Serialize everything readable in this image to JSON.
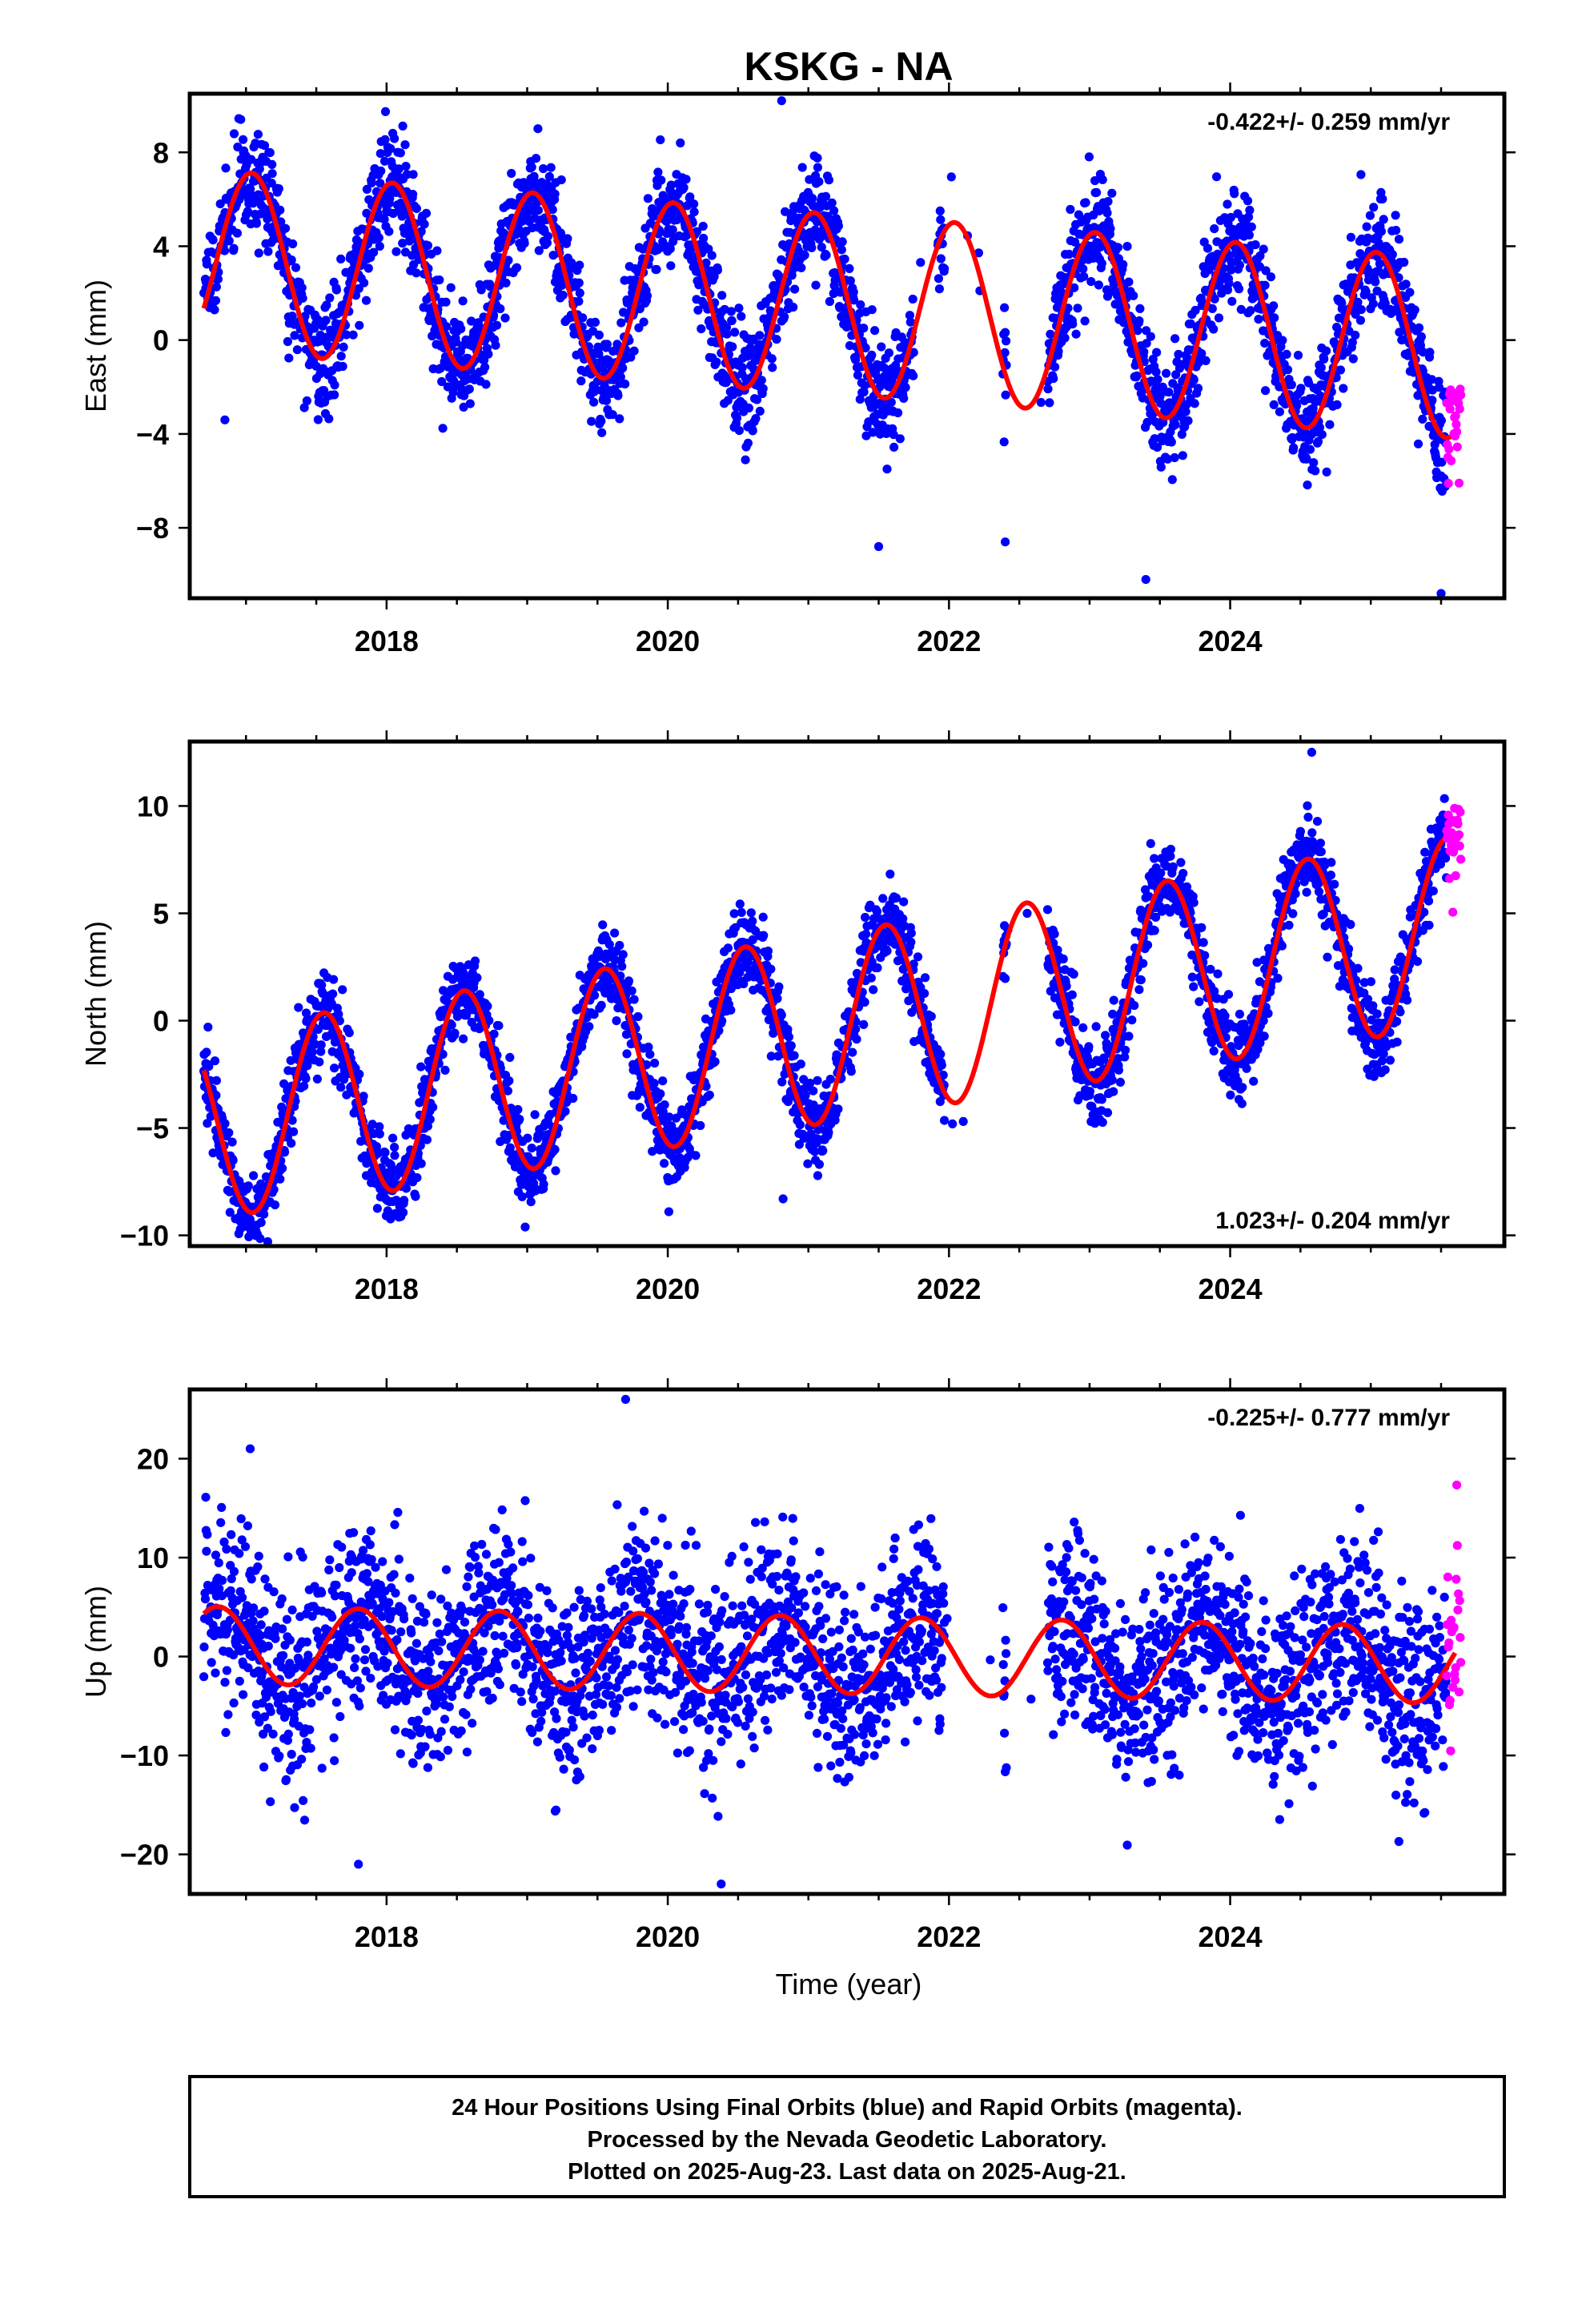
{
  "figure": {
    "title": "KSKG - NA",
    "xlabel": "Time (year)",
    "caption_lines": [
      "24 Hour Positions Using Final Orbits (blue) and Rapid Orbits (magenta).",
      "Processed by the Nevada Geodetic Laboratory.",
      "Plotted on 2025-Aug-23. Last data on 2025-Aug-21."
    ]
  },
  "colors": {
    "final_orbits": "#0000ff",
    "rapid_orbits": "#ff00ff",
    "model_fit": "#ff0000",
    "frame": "#000000"
  },
  "chart_data": [
    {
      "type": "scatter",
      "component": "east",
      "ylabel": "East (mm)",
      "rate_label": "-0.422+/- 0.259 mm/yr",
      "rate_position": "top-right",
      "xlim": [
        2016.6,
        2025.95
      ],
      "ylim": [
        -11,
        10.5
      ],
      "x_ticks": [
        2018,
        2020,
        2022,
        2024
      ],
      "y_ticks": [
        -8,
        -4,
        0,
        4,
        8
      ],
      "fit": {
        "trend_mm_per_yr": -0.422,
        "offset_mm": 1.6,
        "annual_amplitude_mm": 3.85,
        "annual_peak_fraction": 0.04
      },
      "series": [
        {
          "name": "Final Orbits",
          "color": "#0000ff",
          "x_start": 2016.7,
          "x_end": 2025.54,
          "gaps": [
            [
              2021.75,
              2021.92
            ],
            [
              2021.97,
              2022.38
            ],
            [
              2022.41,
              2022.7
            ]
          ]
        },
        {
          "name": "Rapid Orbits",
          "color": "#ff00ff",
          "x_start": 2025.54,
          "x_end": 2025.64
        }
      ],
      "outliers": [
        [
          2020.81,
          10.2
        ],
        [
          2016.85,
          -3.4
        ],
        [
          2021.5,
          -8.8
        ],
        [
          2022.4,
          -8.6
        ],
        [
          2023.4,
          -10.2
        ],
        [
          2025.5,
          -10.8
        ]
      ]
    },
    {
      "type": "scatter",
      "component": "north",
      "ylabel": "North (mm)",
      "rate_label": "1.023+/- 0.204 mm/yr",
      "rate_position": "bottom-right",
      "xlim": [
        2016.6,
        2025.95
      ],
      "ylim": [
        -10.5,
        13
      ],
      "x_ticks": [
        2018,
        2020,
        2022,
        2024
      ],
      "y_ticks": [
        -10,
        -5,
        0,
        5,
        10
      ],
      "fit": {
        "trend_mm_per_yr": 1.023,
        "offset_mm": -0.5,
        "annual_amplitude_mm": 4.4,
        "annual_peak_fraction": 0.55
      },
      "series": [
        {
          "name": "Final Orbits",
          "color": "#0000ff",
          "x_start": 2016.7,
          "x_end": 2025.54,
          "gaps": [
            [
              2021.97,
              2022.38
            ],
            [
              2022.41,
              2022.7
            ]
          ]
        },
        {
          "name": "Rapid Orbits",
          "color": "#ff00ff",
          "x_start": 2025.54,
          "x_end": 2025.64
        }
      ],
      "outliers": [
        [
          2020.82,
          -8.3
        ],
        [
          2024.58,
          12.5
        ],
        [
          2016.73,
          -0.3
        ]
      ]
    },
    {
      "type": "scatter",
      "component": "up",
      "ylabel": "Up (mm)",
      "rate_label": "-0.225+/- 0.777 mm/yr",
      "rate_position": "top-right",
      "xlim": [
        2016.6,
        2025.95
      ],
      "ylim": [
        -24,
        27
      ],
      "x_ticks": [
        2018,
        2020,
        2022,
        2024
      ],
      "y_ticks": [
        -20,
        -10,
        0,
        10,
        20
      ],
      "fit": {
        "trend_mm_per_yr": -0.225,
        "offset_mm": 0.2,
        "annual_amplitude_mm": 3.9,
        "annual_peak_fraction": 0.8
      },
      "series": [
        {
          "name": "Final Orbits",
          "color": "#0000ff",
          "x_start": 2016.7,
          "x_end": 2025.54,
          "gaps": [
            [
              2021.97,
              2022.38
            ],
            [
              2022.41,
              2022.7
            ]
          ]
        },
        {
          "name": "Rapid Orbits",
          "color": "#ff00ff",
          "x_start": 2025.54,
          "x_end": 2025.64
        }
      ],
      "outliers": [
        [
          2019.7,
          26
        ],
        [
          2020.38,
          -23
        ],
        [
          2017.03,
          21
        ],
        [
          2017.8,
          -21
        ],
        [
          2025.2,
          -18.7
        ]
      ]
    }
  ]
}
